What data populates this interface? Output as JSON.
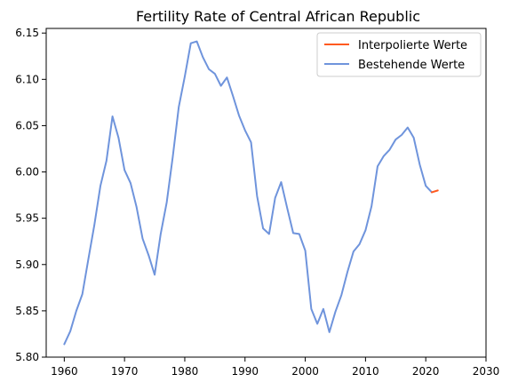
{
  "chart_data": {
    "type": "line",
    "title": "Fertility Rate of Central African Republic",
    "xlabel": "",
    "ylabel": "",
    "xlim": [
      1957,
      2030
    ],
    "ylim": [
      5.8,
      6.155
    ],
    "x_ticks": [
      1960,
      1970,
      1980,
      1990,
      2000,
      2010,
      2020,
      2030
    ],
    "y_ticks": [
      5.8,
      5.85,
      5.9,
      5.95,
      6.0,
      6.05,
      6.1,
      6.15
    ],
    "grid": false,
    "legend_position": "top-right",
    "series": [
      {
        "name": "Interpolierte Werte",
        "color": "#ff5a1f",
        "x": [
          2021,
          2022
        ],
        "values": [
          5.978,
          5.98
        ]
      },
      {
        "name": "Bestehende Werte",
        "color": "#6f94dc",
        "x": [
          1960,
          1961,
          1962,
          1963,
          1964,
          1965,
          1966,
          1967,
          1968,
          1969,
          1970,
          1971,
          1972,
          1973,
          1974,
          1975,
          1976,
          1977,
          1978,
          1979,
          1980,
          1981,
          1982,
          1983,
          1984,
          1985,
          1986,
          1987,
          1988,
          1989,
          1990,
          1991,
          1992,
          1993,
          1994,
          1995,
          1996,
          1997,
          1998,
          1999,
          2000,
          2001,
          2002,
          2003,
          2004,
          2005,
          2006,
          2007,
          2008,
          2009,
          2010,
          2011,
          2012,
          2013,
          2014,
          2015,
          2016,
          2017,
          2018,
          2019,
          2020,
          2021
        ],
        "values": [
          5.814,
          5.828,
          5.85,
          5.868,
          5.906,
          5.943,
          5.985,
          6.012,
          6.06,
          6.037,
          6.002,
          5.988,
          5.962,
          5.928,
          5.91,
          5.889,
          5.933,
          5.967,
          6.016,
          6.07,
          6.103,
          6.139,
          6.141,
          6.124,
          6.111,
          6.106,
          6.093,
          6.102,
          6.082,
          6.061,
          6.045,
          6.032,
          5.974,
          5.939,
          5.933,
          5.972,
          5.989,
          5.961,
          5.934,
          5.933,
          5.915,
          5.852,
          5.836,
          5.852,
          5.827,
          5.849,
          5.867,
          5.892,
          5.914,
          5.922,
          5.937,
          5.963,
          6.006,
          6.017,
          6.024,
          6.035,
          6.04,
          6.048,
          6.037,
          6.008,
          5.985,
          5.978
        ]
      }
    ]
  }
}
